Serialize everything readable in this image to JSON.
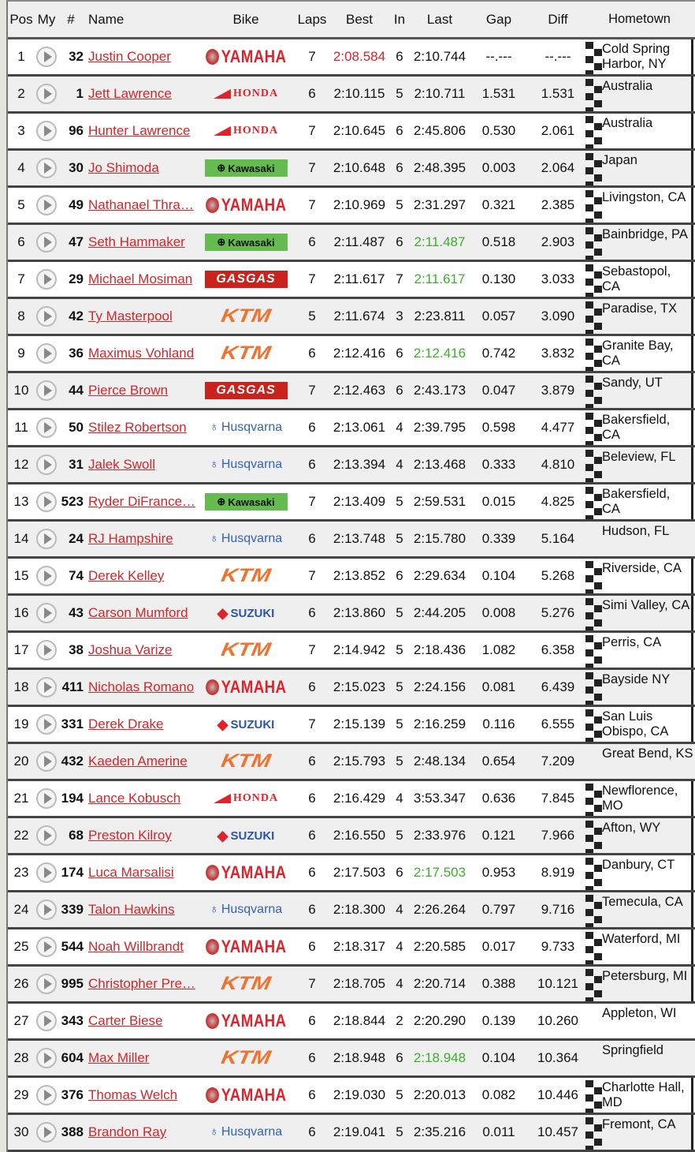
{
  "headers": {
    "pos": "Pos",
    "my": "My",
    "num": "#",
    "name": "Name",
    "bike": "Bike",
    "laps": "Laps",
    "best": "Best",
    "in": "In",
    "last": "Last",
    "gap": "Gap",
    "diff": "Diff",
    "hometown": "Hometown"
  },
  "colors": {
    "link": "#d3262a",
    "best_overall": "#d3262a",
    "personal_best_last": "#3cae2c"
  },
  "bikes": {
    "yamaha": "YAMAHA",
    "honda": "HONDA",
    "kawasaki": "Kawasaki",
    "gasgas": "GASGAS",
    "ktm": "KTM",
    "husqvarna": "Husqvarna",
    "suzuki": "SUZUKI"
  },
  "rows": [
    {
      "pos": "1",
      "num": "32",
      "name": "Justin Cooper",
      "bike": "yamaha",
      "laps": "7",
      "best": "2:08.584",
      "in": "6",
      "last": "2:10.744",
      "gap": "--.---",
      "diff": "--.---",
      "hometown": "Cold Spring Harbor, NY",
      "flag": true,
      "best_hl": true
    },
    {
      "pos": "2",
      "num": "1",
      "name": "Jett Lawrence",
      "bike": "honda",
      "laps": "6",
      "best": "2:10.115",
      "in": "5",
      "last": "2:10.711",
      "gap": "1.531",
      "diff": "1.531",
      "hometown": "Australia",
      "flag": true
    },
    {
      "pos": "3",
      "num": "96",
      "name": "Hunter Lawrence",
      "bike": "honda",
      "laps": "7",
      "best": "2:10.645",
      "in": "6",
      "last": "2:45.806",
      "gap": "0.530",
      "diff": "2.061",
      "hometown": "Australia",
      "flag": true
    },
    {
      "pos": "4",
      "num": "30",
      "name": "Jo Shimoda",
      "bike": "kawasaki",
      "laps": "7",
      "best": "2:10.648",
      "in": "6",
      "last": "2:48.395",
      "gap": "0.003",
      "diff": "2.064",
      "hometown": "Japan",
      "flag": true
    },
    {
      "pos": "5",
      "num": "49",
      "name": "Nathanael Thra…",
      "bike": "yamaha",
      "laps": "7",
      "best": "2:10.969",
      "in": "5",
      "last": "2:31.297",
      "gap": "0.321",
      "diff": "2.385",
      "hometown": "Livingston, CA",
      "flag": true
    },
    {
      "pos": "6",
      "num": "47",
      "name": "Seth Hammaker",
      "bike": "kawasaki",
      "laps": "6",
      "best": "2:11.487",
      "in": "6",
      "last": "2:11.487",
      "gap": "0.518",
      "diff": "2.903",
      "hometown": "Bainbridge, PA",
      "flag": true,
      "last_hl": true
    },
    {
      "pos": "7",
      "num": "29",
      "name": "Michael Mosiman",
      "bike": "gasgas",
      "laps": "7",
      "best": "2:11.617",
      "in": "7",
      "last": "2:11.617",
      "gap": "0.130",
      "diff": "3.033",
      "hometown": "Sebastopol, CA",
      "flag": true,
      "last_hl": true
    },
    {
      "pos": "8",
      "num": "42",
      "name": "Ty Masterpool",
      "bike": "ktm",
      "laps": "5",
      "best": "2:11.674",
      "in": "3",
      "last": "2:23.811",
      "gap": "0.057",
      "diff": "3.090",
      "hometown": "Paradise, TX",
      "flag": true
    },
    {
      "pos": "9",
      "num": "36",
      "name": "Maximus Vohland",
      "bike": "ktm",
      "laps": "6",
      "best": "2:12.416",
      "in": "6",
      "last": "2:12.416",
      "gap": "0.742",
      "diff": "3.832",
      "hometown": "Granite Bay, CA",
      "flag": true,
      "last_hl": true
    },
    {
      "pos": "10",
      "num": "44",
      "name": "Pierce Brown",
      "bike": "gasgas",
      "laps": "7",
      "best": "2:12.463",
      "in": "6",
      "last": "2:43.173",
      "gap": "0.047",
      "diff": "3.879",
      "hometown": "Sandy, UT",
      "flag": true
    },
    {
      "pos": "11",
      "num": "50",
      "name": "Stilez Robertson",
      "bike": "husqvarna",
      "laps": "6",
      "best": "2:13.061",
      "in": "4",
      "last": "2:39.795",
      "gap": "0.598",
      "diff": "4.477",
      "hometown": "Bakersfield, CA",
      "flag": true
    },
    {
      "pos": "12",
      "num": "31",
      "name": "Jalek Swoll",
      "bike": "husqvarna",
      "laps": "6",
      "best": "2:13.394",
      "in": "4",
      "last": "2:13.468",
      "gap": "0.333",
      "diff": "4.810",
      "hometown": "Beleview, FL",
      "flag": true
    },
    {
      "pos": "13",
      "num": "523",
      "name": "Ryder DiFrance…",
      "bike": "kawasaki",
      "laps": "7",
      "best": "2:13.409",
      "in": "5",
      "last": "2:59.531",
      "gap": "0.015",
      "diff": "4.825",
      "hometown": "Bakersfield, CA",
      "flag": true
    },
    {
      "pos": "14",
      "num": "24",
      "name": "RJ Hampshire",
      "bike": "husqvarna",
      "laps": "6",
      "best": "2:13.748",
      "in": "5",
      "last": "2:15.780",
      "gap": "0.339",
      "diff": "5.164",
      "hometown": "Hudson, FL",
      "flag": false
    },
    {
      "pos": "15",
      "num": "74",
      "name": "Derek Kelley",
      "bike": "ktm",
      "laps": "7",
      "best": "2:13.852",
      "in": "6",
      "last": "2:29.634",
      "gap": "0.104",
      "diff": "5.268",
      "hometown": "Riverside, CA",
      "flag": true
    },
    {
      "pos": "16",
      "num": "43",
      "name": "Carson Mumford",
      "bike": "suzuki",
      "laps": "6",
      "best": "2:13.860",
      "in": "5",
      "last": "2:44.205",
      "gap": "0.008",
      "diff": "5.276",
      "hometown": "Simi Valley, CA",
      "flag": true
    },
    {
      "pos": "17",
      "num": "38",
      "name": "Joshua Varize",
      "bike": "ktm",
      "laps": "7",
      "best": "2:14.942",
      "in": "5",
      "last": "2:18.436",
      "gap": "1.082",
      "diff": "6.358",
      "hometown": "Perris, CA",
      "flag": true
    },
    {
      "pos": "18",
      "num": "411",
      "name": "Nicholas Romano",
      "bike": "yamaha",
      "laps": "6",
      "best": "2:15.023",
      "in": "5",
      "last": "2:24.156",
      "gap": "0.081",
      "diff": "6.439",
      "hometown": "Bayside NY",
      "flag": true
    },
    {
      "pos": "19",
      "num": "331",
      "name": "Derek Drake",
      "bike": "suzuki",
      "laps": "7",
      "best": "2:15.139",
      "in": "5",
      "last": "2:16.259",
      "gap": "0.116",
      "diff": "6.555",
      "hometown": "San Luis Obispo, CA",
      "flag": true
    },
    {
      "pos": "20",
      "num": "432",
      "name": "Kaeden Amerine",
      "bike": "ktm",
      "laps": "6",
      "best": "2:15.793",
      "in": "5",
      "last": "2:48.134",
      "gap": "0.654",
      "diff": "7.209",
      "hometown": "Great Bend, KS",
      "flag": false
    },
    {
      "pos": "21",
      "num": "194",
      "name": "Lance Kobusch",
      "bike": "honda",
      "laps": "6",
      "best": "2:16.429",
      "in": "4",
      "last": "3:53.347",
      "gap": "0.636",
      "diff": "7.845",
      "hometown": "Newflorence, MO",
      "flag": true
    },
    {
      "pos": "22",
      "num": "68",
      "name": "Preston Kilroy",
      "bike": "suzuki",
      "laps": "6",
      "best": "2:16.550",
      "in": "5",
      "last": "2:33.976",
      "gap": "0.121",
      "diff": "7.966",
      "hometown": "Afton, WY",
      "flag": true
    },
    {
      "pos": "23",
      "num": "174",
      "name": "Luca Marsalisi",
      "bike": "yamaha",
      "laps": "6",
      "best": "2:17.503",
      "in": "6",
      "last": "2:17.503",
      "gap": "0.953",
      "diff": "8.919",
      "hometown": "Danbury, CT",
      "flag": true,
      "last_hl": true
    },
    {
      "pos": "24",
      "num": "339",
      "name": "Talon Hawkins",
      "bike": "husqvarna",
      "laps": "6",
      "best": "2:18.300",
      "in": "4",
      "last": "2:26.264",
      "gap": "0.797",
      "diff": "9.716",
      "hometown": "Temecula, CA",
      "flag": true
    },
    {
      "pos": "25",
      "num": "544",
      "name": "Noah Willbrandt",
      "bike": "yamaha",
      "laps": "6",
      "best": "2:18.317",
      "in": "4",
      "last": "2:20.585",
      "gap": "0.017",
      "diff": "9.733",
      "hometown": "Waterford, MI",
      "flag": true
    },
    {
      "pos": "26",
      "num": "995",
      "name": "Christopher Pre…",
      "bike": "ktm",
      "laps": "7",
      "best": "2:18.705",
      "in": "4",
      "last": "2:20.714",
      "gap": "0.388",
      "diff": "10.121",
      "hometown": "Petersburg, MI",
      "flag": true
    },
    {
      "pos": "27",
      "num": "343",
      "name": "Carter Biese",
      "bike": "yamaha",
      "laps": "6",
      "best": "2:18.844",
      "in": "2",
      "last": "2:20.290",
      "gap": "0.139",
      "diff": "10.260",
      "hometown": "Appleton, WI",
      "flag": false
    },
    {
      "pos": "28",
      "num": "604",
      "name": "Max Miller",
      "bike": "ktm",
      "laps": "6",
      "best": "2:18.948",
      "in": "6",
      "last": "2:18.948",
      "gap": "0.104",
      "diff": "10.364",
      "hometown": "Springfield",
      "flag": false,
      "last_hl": true
    },
    {
      "pos": "29",
      "num": "376",
      "name": "Thomas Welch",
      "bike": "yamaha",
      "laps": "6",
      "best": "2:19.030",
      "in": "5",
      "last": "2:20.013",
      "gap": "0.082",
      "diff": "10.446",
      "hometown": "Charlotte Hall, MD",
      "flag": true
    },
    {
      "pos": "30",
      "num": "388",
      "name": "Brandon Ray",
      "bike": "husqvarna",
      "laps": "6",
      "best": "2:19.041",
      "in": "5",
      "last": "2:35.216",
      "gap": "0.011",
      "diff": "10.457",
      "hometown": "Fremont, CA",
      "flag": true
    }
  ]
}
